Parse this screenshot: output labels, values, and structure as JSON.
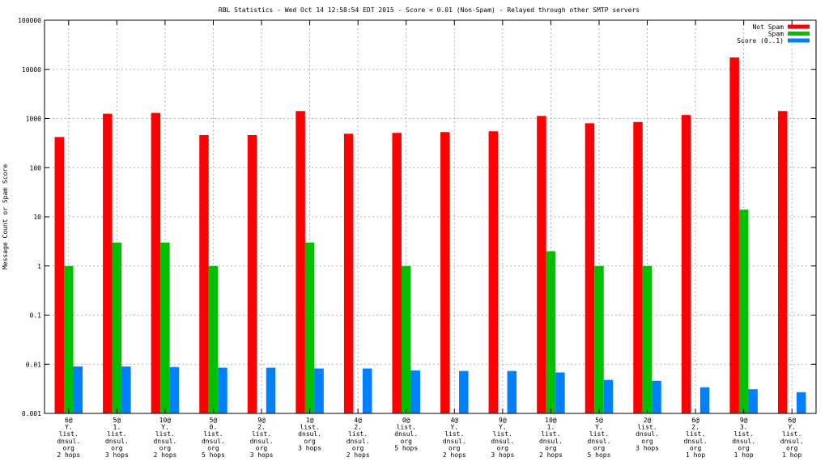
{
  "chart_data": {
    "type": "bar",
    "title": "RBL Statistics - Wed Oct 14 12:58:54 EDT 2015 - Score < 0.01 (Non-Spam) - Relayed through other SMTP servers",
    "xlabel": "",
    "ylabel": "Message Count or Spam Score",
    "yscale": "log",
    "ylim": [
      0.001,
      100000
    ],
    "yticks": [
      "0.001",
      "0.01",
      "0.1",
      "1",
      "10",
      "100",
      "1000",
      "10000",
      "100000"
    ],
    "grid": true,
    "legend_position": "top-right",
    "categories": [
      [
        "6@",
        "Y.",
        "list.",
        "dnsul.",
        "org",
        "2 hops"
      ],
      [
        "5@",
        "1.",
        "list.",
        "dnsul.",
        "org",
        "3 hops"
      ],
      [
        "10@",
        "Y.",
        "list.",
        "dnsul.",
        "org",
        "2 hops"
      ],
      [
        "5@",
        "0.",
        "list.",
        "dnsul.",
        "org",
        "5 hops"
      ],
      [
        "9@",
        "2.",
        "list.",
        "dnsul.",
        "org",
        "3 hops"
      ],
      [
        "1@",
        "list.",
        "dnsul.",
        "org",
        "3 hops"
      ],
      [
        "4@",
        "2.",
        "list.",
        "dnsul.",
        "org",
        "2 hops"
      ],
      [
        "0@",
        "list.",
        "dnsul.",
        "org",
        "5 hops"
      ],
      [
        "4@",
        "Y.",
        "list.",
        "dnsul.",
        "org",
        "2 hops"
      ],
      [
        "9@",
        "Y.",
        "list.",
        "dnsul.",
        "org",
        "3 hops"
      ],
      [
        "10@",
        "1.",
        "list.",
        "dnsul.",
        "org",
        "2 hops"
      ],
      [
        "5@",
        "Y.",
        "list.",
        "dnsul.",
        "org",
        "5 hops"
      ],
      [
        "2@",
        "list.",
        "dnsul.",
        "org",
        "3 hops"
      ],
      [
        "6@",
        "2.",
        "list.",
        "dnsul.",
        "org",
        "1 hop"
      ],
      [
        "9@",
        "3.",
        "list.",
        "dnsul.",
        "org",
        "1 hop"
      ],
      [
        "6@",
        "Y.",
        "list.",
        "dnsul.",
        "org",
        "1 hop"
      ]
    ],
    "series": [
      {
        "name": "Not Spam",
        "color": "#ff0000",
        "values": [
          420,
          1250,
          1300,
          460,
          460,
          1420,
          490,
          510,
          530,
          550,
          1130,
          800,
          850,
          1180,
          17500,
          1420
        ]
      },
      {
        "name": "Spam",
        "color": "#00c000",
        "values": [
          1,
          3,
          3,
          1,
          null,
          3,
          null,
          1,
          null,
          null,
          2,
          1,
          1,
          null,
          14,
          null
        ]
      },
      {
        "name": "Score (0..1)",
        "color": "#0080ff",
        "values": [
          0.009,
          0.009,
          0.0088,
          0.0085,
          0.0085,
          0.0082,
          0.0082,
          0.0075,
          0.0073,
          0.0073,
          0.0068,
          0.0048,
          0.0046,
          0.0034,
          0.0031,
          0.0027
        ]
      }
    ]
  }
}
